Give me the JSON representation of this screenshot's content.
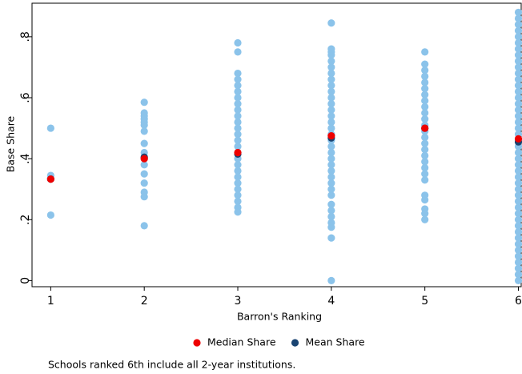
{
  "chart_data": {
    "type": "scatter",
    "xlabel": "Barron's Ranking",
    "ylabel": "Base Share",
    "note": "Schools ranked 6th include all 2-year institutions.",
    "xlim": [
      0.8,
      6.03
    ],
    "ylim": [
      -0.02,
      0.91
    ],
    "xticks": [
      1,
      2,
      3,
      4,
      5,
      6
    ],
    "yticks": [
      0,
      {
        "value": 0.2,
        "label": ".2"
      },
      {
        "value": 0.4,
        "label": ".4"
      },
      {
        "value": 0.6,
        "label": ".6"
      },
      {
        "value": 0.8,
        "label": ".8"
      }
    ],
    "grid": false,
    "legend": "bottom",
    "series": [
      {
        "color": "#8bc3ea",
        "x": [
          1,
          1,
          1,
          1,
          2,
          2,
          2,
          2,
          2,
          2,
          2,
          2,
          2,
          2,
          2,
          2,
          2,
          2,
          2,
          2,
          3,
          3,
          3,
          3,
          3,
          3,
          3,
          3,
          3,
          3,
          3,
          3,
          3,
          3,
          3,
          3,
          3,
          3,
          3,
          3,
          3,
          3,
          3,
          3,
          3,
          3,
          4,
          4,
          4,
          4,
          4,
          4,
          4,
          4,
          4,
          4,
          4,
          4,
          4,
          4,
          4,
          4,
          4,
          4,
          4,
          4,
          4,
          4,
          4,
          4,
          4,
          4,
          4,
          4,
          4,
          4,
          4,
          4,
          4,
          4,
          5,
          5,
          5,
          5,
          5,
          5,
          5,
          5,
          5,
          5,
          5,
          5,
          5,
          5,
          5,
          5,
          5,
          5,
          5,
          5,
          5,
          5,
          5,
          5,
          5,
          5,
          6,
          6,
          6,
          6,
          6,
          6,
          6,
          6,
          6,
          6,
          6,
          6,
          6,
          6,
          6,
          6,
          6,
          6,
          6,
          6,
          6,
          6,
          6,
          6,
          6,
          6,
          6,
          6,
          6,
          6,
          6,
          6,
          6,
          6,
          6,
          6,
          6,
          6,
          6,
          6,
          6,
          6,
          6,
          6,
          6
        ],
        "values": [
          0.5,
          0.345,
          0.333,
          0.215,
          0.585,
          0.55,
          0.54,
          0.53,
          0.52,
          0.51,
          0.49,
          0.45,
          0.42,
          0.4,
          0.38,
          0.35,
          0.32,
          0.29,
          0.275,
          0.18,
          0.78,
          0.75,
          0.68,
          0.66,
          0.64,
          0.62,
          0.6,
          0.58,
          0.56,
          0.54,
          0.52,
          0.5,
          0.48,
          0.46,
          0.44,
          0.42,
          0.4,
          0.38,
          0.36,
          0.34,
          0.32,
          0.3,
          0.28,
          0.26,
          0.24,
          0.225,
          0.845,
          0.76,
          0.75,
          0.74,
          0.72,
          0.7,
          0.68,
          0.66,
          0.64,
          0.62,
          0.6,
          0.58,
          0.56,
          0.54,
          0.52,
          0.5,
          0.48,
          0.46,
          0.44,
          0.42,
          0.4,
          0.38,
          0.36,
          0.34,
          0.32,
          0.3,
          0.28,
          0.25,
          0.23,
          0.21,
          0.19,
          0.175,
          0.14,
          0,
          0.75,
          0.71,
          0.69,
          0.67,
          0.65,
          0.63,
          0.61,
          0.59,
          0.57,
          0.55,
          0.53,
          0.51,
          0.49,
          0.47,
          0.45,
          0.43,
          0.41,
          0.39,
          0.37,
          0.35,
          0.33,
          0.28,
          0.265,
          0.235,
          0.22,
          0.2,
          0.88,
          0.86,
          0.84,
          0.82,
          0.8,
          0.78,
          0.76,
          0.74,
          0.72,
          0.7,
          0.68,
          0.66,
          0.64,
          0.62,
          0.6,
          0.58,
          0.56,
          0.54,
          0.52,
          0.5,
          0.48,
          0.46,
          0.44,
          0.42,
          0.4,
          0.38,
          0.36,
          0.34,
          0.32,
          0.3,
          0.28,
          0.26,
          0.24,
          0.22,
          0.2,
          0.18,
          0.16,
          0.14,
          0.12,
          0.1,
          0.08,
          0.06,
          0.04,
          0.02,
          0
        ]
      },
      {
        "name": "Mean Share",
        "color": "#1a4472",
        "x": [
          1,
          2,
          3,
          4,
          5,
          6
        ],
        "values": [
          0.333,
          0.405,
          0.415,
          0.468,
          0.5,
          0.455
        ]
      },
      {
        "name": "Median Share",
        "color": "#ee0000",
        "x": [
          1,
          2,
          3,
          4,
          5,
          6
        ],
        "values": [
          0.333,
          0.4,
          0.42,
          0.475,
          0.5,
          0.465
        ]
      }
    ]
  }
}
